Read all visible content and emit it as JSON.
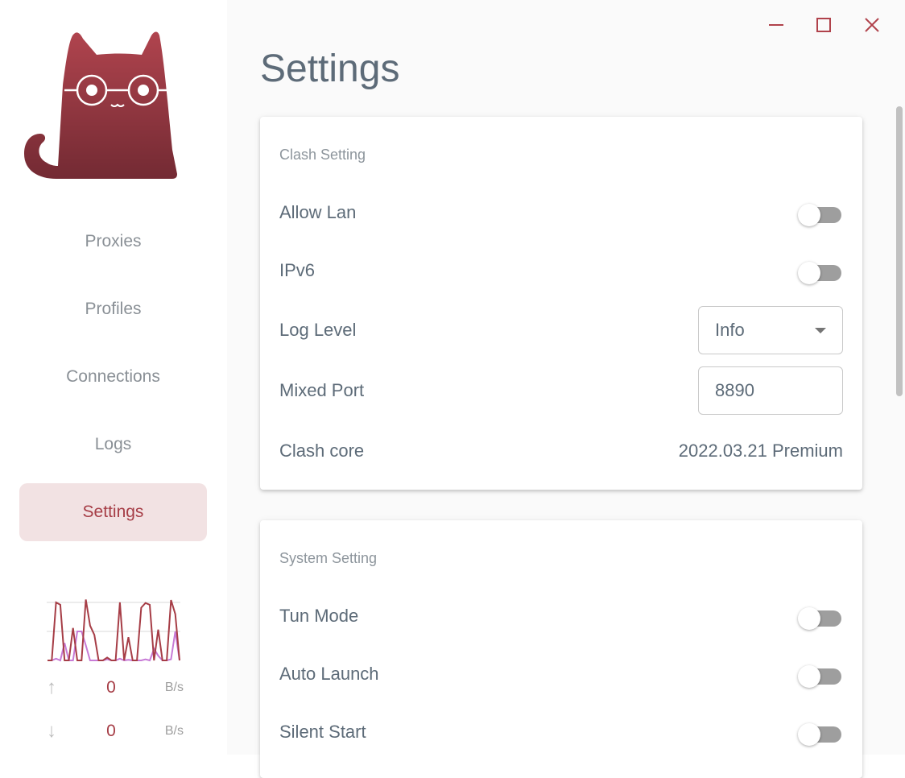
{
  "window": {
    "minimize_icon": "minimize-icon",
    "maximize_icon": "maximize-icon",
    "close_icon": "close-icon"
  },
  "sidebar": {
    "items": [
      {
        "label": "Proxies"
      },
      {
        "label": "Profiles"
      },
      {
        "label": "Connections"
      },
      {
        "label": "Logs"
      },
      {
        "label": "Settings",
        "active": true
      }
    ],
    "traffic": {
      "upload": {
        "value": "0",
        "unit": "B/s"
      },
      "download": {
        "value": "0",
        "unit": "B/s"
      },
      "chart_colors": {
        "primary": "#a63d46",
        "secondary": "#c77bd6"
      },
      "series_primary": [
        0,
        0,
        100,
        96,
        0,
        0,
        56,
        0,
        0,
        105,
        60,
        44,
        0,
        0,
        5,
        0,
        0,
        100,
        0,
        40,
        0,
        0,
        91,
        99,
        96,
        0,
        53,
        0,
        0,
        104,
        80,
        0
      ],
      "series_secondary": [
        0,
        0,
        3,
        0,
        30,
        0,
        0,
        50,
        50,
        26,
        0,
        0,
        0,
        0,
        2,
        0,
        0,
        3,
        0,
        1,
        0,
        0,
        0,
        2,
        0,
        20,
        8,
        0,
        0,
        2,
        50,
        0
      ]
    },
    "accent": "#a63d46"
  },
  "main": {
    "title": "Settings",
    "clash": {
      "heading": "Clash Setting",
      "allow_lan": {
        "label": "Allow Lan",
        "on": false
      },
      "ipv6": {
        "label": "IPv6",
        "on": false
      },
      "log_level": {
        "label": "Log Level",
        "value": "Info"
      },
      "mixed_port": {
        "label": "Mixed Port",
        "value": "8890"
      },
      "core": {
        "label": "Clash core",
        "value": "2022.03.21 Premium"
      }
    },
    "system": {
      "heading": "System Setting",
      "tun_mode": {
        "label": "Tun Mode",
        "on": false
      },
      "auto_launch": {
        "label": "Auto Launch",
        "on": false
      },
      "silent_start": {
        "label": "Silent Start",
        "on": false
      }
    }
  }
}
